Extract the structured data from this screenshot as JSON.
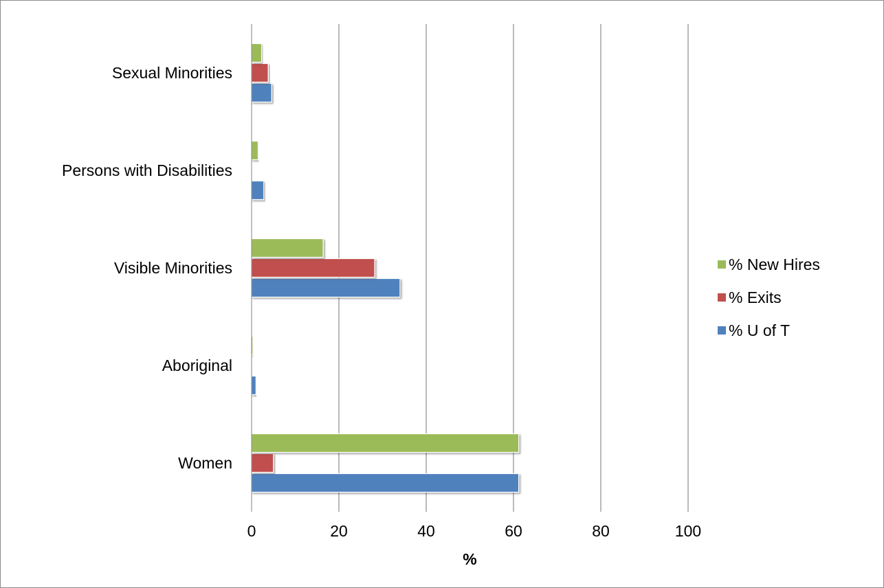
{
  "chart_data": {
    "type": "bar",
    "orientation": "horizontal",
    "categories": [
      "Women",
      "Aboriginal",
      "Visible Minorities",
      "Persons with Disabilities",
      "Sexual Minorities"
    ],
    "series": [
      {
        "name": "% U of T",
        "color": "#4F81BD",
        "values": [
          61.2,
          1.0,
          34.0,
          2.8,
          4.6
        ]
      },
      {
        "name": "% Exits",
        "color": "#C0504D",
        "values": [
          5.0,
          0,
          28.2,
          0,
          3.8
        ]
      },
      {
        "name": "% New Hires",
        "color": "#9BBB59",
        "values": [
          61.2,
          0.3,
          16.4,
          1.5,
          2.3
        ]
      }
    ],
    "xlabel": "%",
    "ylabel": "",
    "xlim": [
      0,
      100
    ],
    "xticks": [
      "0",
      "20",
      "40",
      "60",
      "80",
      "100"
    ],
    "grid": "vertical major gridlines",
    "legend": "right"
  }
}
